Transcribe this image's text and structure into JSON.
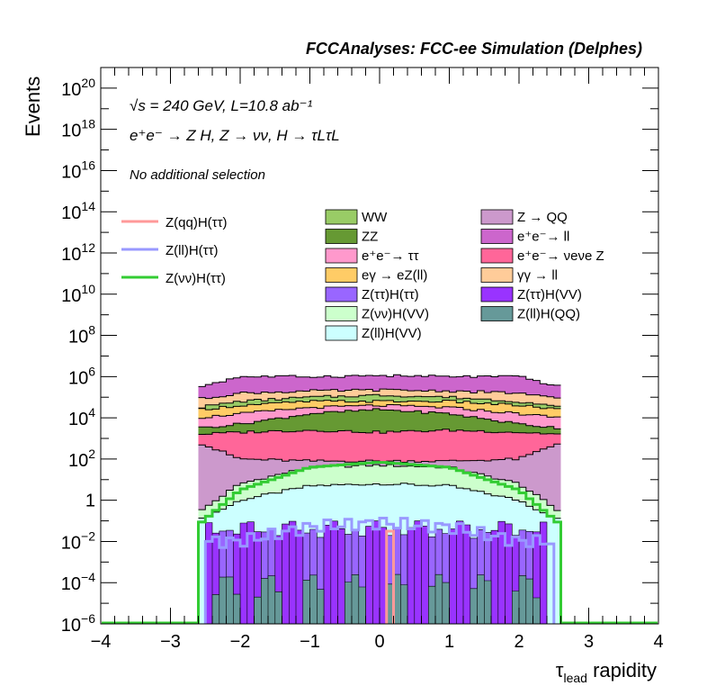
{
  "chart_data": {
    "type": "area",
    "title": "FCCAnalyses: FCC-ee Simulation (Delphes)",
    "xlabel": "τlead rapidity",
    "xlabel_main": "τ",
    "xlabel_sub": "lead",
    "xlabel_rest": " rapidity",
    "ylabel": "Events",
    "xlim": [
      -4,
      4
    ],
    "ylim": [
      1e-06,
      1e+21
    ],
    "y_log_scale": true,
    "stacked_fill": true,
    "x_ticks": [
      "−4",
      "−3",
      "−2",
      "−1",
      "0",
      "1",
      "2",
      "3",
      "4"
    ],
    "y_tick_exponents": [
      -6,
      -4,
      -2,
      0,
      2,
      4,
      6,
      8,
      10,
      12,
      14,
      16,
      18,
      20
    ],
    "annotations": {
      "energy_lumi": "√s = 240 GeV, L=10.8 ab⁻¹",
      "process": "e⁺e⁻ → Z H, Z → νν, H → τLτL",
      "selection": "No additional selection"
    },
    "legend_signals": [
      {
        "name": "Z(qq)H(ττ)",
        "color": "#ff9999"
      },
      {
        "name": "Z(ll)H(ττ)",
        "color": "#9999ff"
      },
      {
        "name": "Z(νν)H(ττ)",
        "color": "#33cc33"
      }
    ],
    "legend_backgrounds": [
      {
        "name": "WW",
        "color": "#99cc66"
      },
      {
        "name": "Z → QQ",
        "color": "#cc99cc"
      },
      {
        "name": "ZZ",
        "color": "#669933"
      },
      {
        "name": "e⁺e⁻→ ll",
        "color": "#cc66cc"
      },
      {
        "name": "e⁺e⁻→ ττ",
        "color": "#ff99cc"
      },
      {
        "name": "e⁺e⁻→ νeνe Z",
        "color": "#ff6699"
      },
      {
        "name": "eγ → eZ(ll)",
        "color": "#ffcc66"
      },
      {
        "name": "γγ → ll",
        "color": "#ffcc99"
      },
      {
        "name": "Z(ττ)H(ττ)",
        "color": "#9966ff"
      },
      {
        "name": "Z(ττ)H(VV)",
        "color": "#9933ff"
      },
      {
        "name": "Z(νν)H(VV)",
        "color": "#ccffcc"
      },
      {
        "name": "Z(ll)H(QQ)",
        "color": "#669999"
      },
      {
        "name": "Z(ll)H(VV)",
        "color": "#ccffff"
      }
    ],
    "stack_envelopes_log10_at_rapidity": {
      "x": [
        -2.6,
        -2.0,
        -1.0,
        0.0,
        1.0,
        2.0,
        2.6
      ],
      "Z(ll)H(VV)": [
        -1.0,
        0.0,
        0.7,
        0.8,
        0.7,
        0.0,
        -1.0
      ],
      "Z(νν)H(VV)": [
        -0.6,
        0.8,
        1.6,
        1.7,
        1.6,
        0.8,
        -0.6
      ],
      "Z → QQ": [
        2.8,
        2.0,
        1.9,
        1.9,
        1.9,
        2.0,
        2.8
      ],
      "e⁺e⁻→ νeνe Z": [
        3.2,
        3.3,
        3.4,
        3.3,
        3.4,
        3.3,
        3.2
      ],
      "ZZ": [
        3.5,
        3.7,
        4.2,
        4.4,
        4.2,
        3.7,
        3.5
      ],
      "e⁺e⁻→ ττ": [
        4.0,
        4.2,
        4.5,
        4.6,
        4.5,
        4.2,
        4.0
      ],
      "eγ → eZ(ll)": [
        4.4,
        4.6,
        4.8,
        4.8,
        4.8,
        4.6,
        4.4
      ],
      "WW": [
        4.5,
        4.8,
        5.0,
        5.1,
        5.0,
        4.8,
        4.5
      ],
      "γγ → ll": [
        4.9,
        5.2,
        5.3,
        5.35,
        5.3,
        5.2,
        4.9
      ],
      "e⁺e⁻→ ll": [
        5.5,
        6.0,
        6.0,
        6.05,
        6.0,
        6.0,
        5.5
      ]
    },
    "signal_curves_log10": {
      "Z(νν)H(ττ)": {
        "x": [
          -2.6,
          -2.0,
          -1.0,
          0.0,
          1.0,
          2.0,
          2.6
        ],
        "y": [
          -1.2,
          0.5,
          1.6,
          1.85,
          1.6,
          0.5,
          -1.2
        ]
      },
      "Z(ll)H(ττ)": {
        "x": [
          -2.5,
          -2.0,
          -1.0,
          0.0,
          1.0,
          2.0,
          2.5
        ],
        "y": [
          -2.0,
          -2.0,
          -1.3,
          -1.1,
          -1.3,
          -2.0,
          -2.0
        ]
      },
      "Z(qq)H(ττ)": {
        "x": [
          0.1,
          0.2
        ],
        "y": [
          -1.5,
          -1.5
        ]
      }
    },
    "grid": false,
    "legend_placement": "top-left and top-center"
  }
}
